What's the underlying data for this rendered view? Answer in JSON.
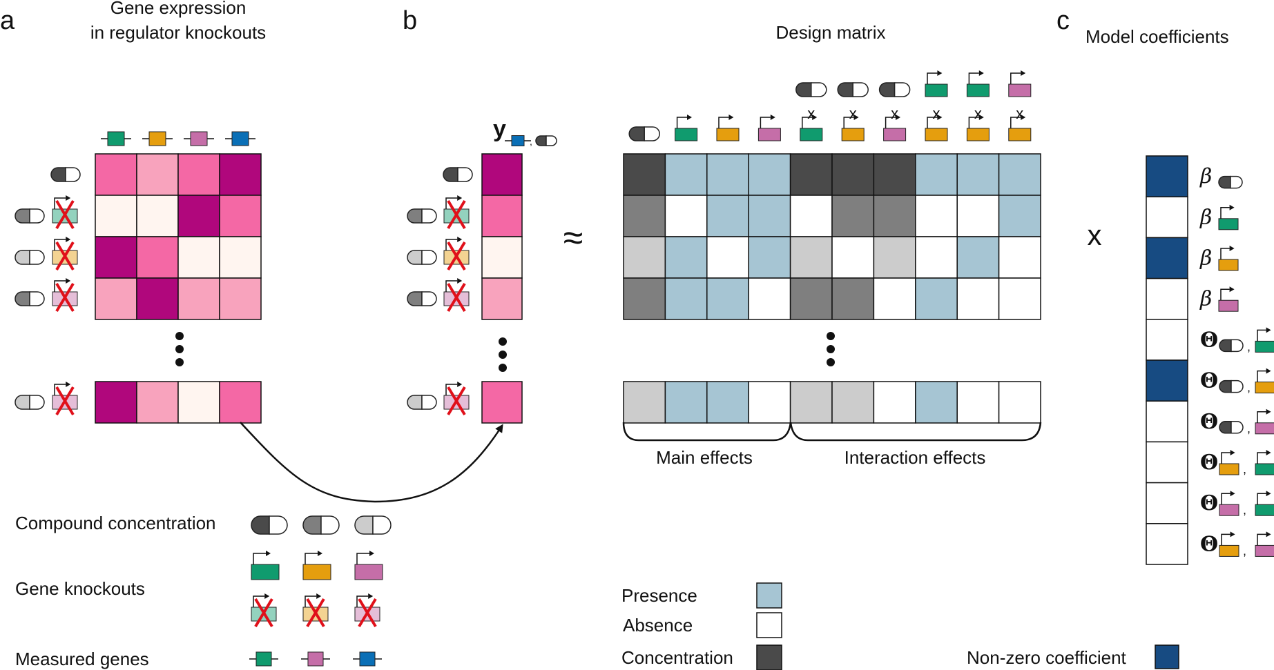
{
  "panel_a": {
    "letter": "a",
    "title_line1": "Gene expression",
    "title_line2": "in regulator knockouts",
    "ellipsis": "⋮"
  },
  "panel_b": {
    "letter": "b",
    "y_symbol": "y",
    "approx": "≈",
    "design_matrix_title": "Design matrix",
    "main_effects_label": "Main effects",
    "interaction_effects_label": "Interaction effects",
    "cross": "x"
  },
  "panel_c": {
    "letter": "c",
    "title": "Model coefficients",
    "times": "x",
    "beta": "β",
    "theta": "Θ",
    "comma": ","
  },
  "legend": {
    "compound_concentration": "Compound concentration",
    "gene_knockouts": "Gene knockouts",
    "measured_genes": "Measured genes",
    "presence": "Presence",
    "absence": "Absence",
    "concentration": "Concentration",
    "non_zero_coefficient": "Non-zero coefficient"
  },
  "colors": {
    "expr_high": "#b0077c",
    "expr_mid": "#f468a5",
    "expr_low": "#f8a3bd",
    "expr_none": "#fff5f0",
    "presence": "#a6c5d3",
    "absence": "#ffffff",
    "conc_high": "#4a4a4a",
    "conc_mid": "#7f7f7f",
    "conc_low": "#cccccc",
    "nonzero": "#174b82",
    "green": "#109b6e",
    "orange": "#e59e0e",
    "pink": "#c56ea8",
    "blue": "#0a6fb6",
    "red_x": "#e0101a"
  },
  "expression_matrix": [
    [
      "expr_mid",
      "expr_low",
      "expr_mid",
      "expr_high"
    ],
    [
      "expr_none",
      "expr_none",
      "expr_high",
      "expr_mid"
    ],
    [
      "expr_high",
      "expr_mid",
      "expr_none",
      "expr_none"
    ],
    [
      "expr_low",
      "expr_high",
      "expr_low",
      "expr_low"
    ],
    [
      "expr_high",
      "expr_low",
      "expr_none",
      "expr_mid"
    ]
  ],
  "expression_columns": [
    "green",
    "orange",
    "pink",
    "blue"
  ],
  "row_conditions": [
    {
      "pill": "conc_high",
      "ko": null
    },
    {
      "pill": "conc_mid",
      "ko": "green"
    },
    {
      "pill": "conc_low",
      "ko": "orange"
    },
    {
      "pill": "conc_mid",
      "ko": "pink"
    },
    {
      "pill": "conc_low",
      "ko": "pink"
    }
  ],
  "y_vector": [
    "expr_high",
    "expr_mid",
    "expr_none",
    "expr_low",
    "expr_mid"
  ],
  "design_columns": [
    {
      "top": null,
      "bottom": "pill"
    },
    {
      "top": null,
      "bottom": "green"
    },
    {
      "top": null,
      "bottom": "orange"
    },
    {
      "top": null,
      "bottom": "pink"
    },
    {
      "top": "pill",
      "bottom": "green"
    },
    {
      "top": "pill",
      "bottom": "orange"
    },
    {
      "top": "pill",
      "bottom": "pink"
    },
    {
      "top": "green",
      "bottom": "orange"
    },
    {
      "top": "green",
      "bottom": "orange"
    },
    {
      "top": "pink",
      "bottom": "orange"
    }
  ],
  "design_matrix": [
    [
      "conc_high",
      "presence",
      "presence",
      "presence",
      "conc_high",
      "conc_high",
      "conc_high",
      "presence",
      "presence",
      "presence"
    ],
    [
      "conc_mid",
      "absence",
      "presence",
      "presence",
      "absence",
      "conc_mid",
      "conc_mid",
      "absence",
      "absence",
      "presence"
    ],
    [
      "conc_low",
      "presence",
      "absence",
      "presence",
      "conc_low",
      "absence",
      "conc_low",
      "absence",
      "presence",
      "absence"
    ],
    [
      "conc_mid",
      "presence",
      "presence",
      "absence",
      "conc_mid",
      "conc_mid",
      "absence",
      "presence",
      "absence",
      "absence"
    ],
    [
      "conc_low",
      "presence",
      "presence",
      "absence",
      "conc_low",
      "conc_low",
      "absence",
      "presence",
      "absence",
      "absence"
    ]
  ],
  "coefficients": [
    {
      "symbol": "beta",
      "sub": [
        "pill"
      ],
      "nonzero": true
    },
    {
      "symbol": "beta",
      "sub": [
        "green"
      ],
      "nonzero": false
    },
    {
      "symbol": "beta",
      "sub": [
        "orange"
      ],
      "nonzero": true
    },
    {
      "symbol": "beta",
      "sub": [
        "pink"
      ],
      "nonzero": false
    },
    {
      "symbol": "theta",
      "sub": [
        "pill",
        "green"
      ],
      "nonzero": false
    },
    {
      "symbol": "theta",
      "sub": [
        "pill",
        "orange"
      ],
      "nonzero": true
    },
    {
      "symbol": "theta",
      "sub": [
        "pill",
        "pink"
      ],
      "nonzero": false
    },
    {
      "symbol": "theta",
      "sub": [
        "orange",
        "green"
      ],
      "nonzero": false
    },
    {
      "symbol": "theta",
      "sub": [
        "pink",
        "green"
      ],
      "nonzero": false
    },
    {
      "symbol": "theta",
      "sub": [
        "orange",
        "pink"
      ],
      "nonzero": false
    }
  ],
  "legend_pills": [
    "conc_high",
    "conc_mid",
    "conc_low"
  ],
  "legend_genes": [
    "green",
    "orange",
    "pink"
  ],
  "legend_measured": [
    "green",
    "pink",
    "blue"
  ]
}
